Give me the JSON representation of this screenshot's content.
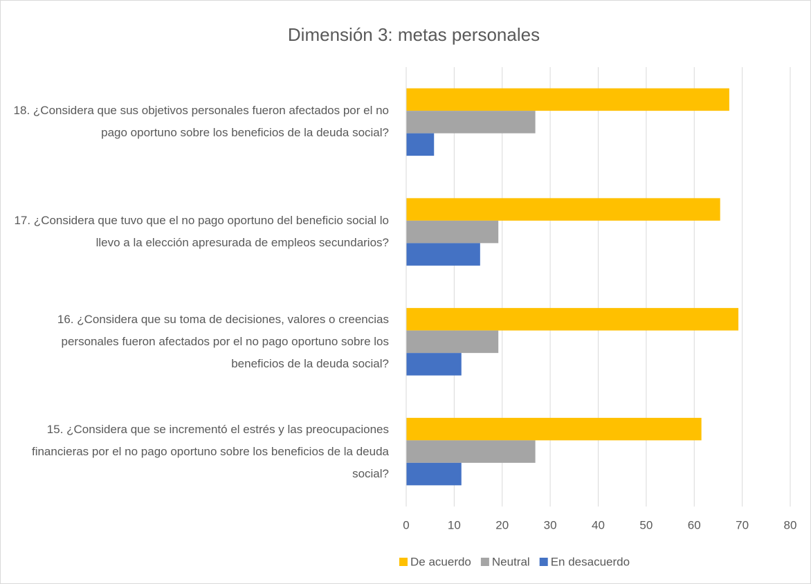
{
  "chart_data": {
    "type": "hbar",
    "title": "Dimensión 3: metas personales",
    "categories": [
      "18. ¿Considera que sus objetivos personales fueron afectados por el no pago oportuno sobre los beneficios de la deuda social?",
      "17. ¿Considera que tuvo que el no pago oportuno del beneficio social lo llevo a la elección apresurada de empleos secundarios?",
      "16. ¿Considera que su toma de decisiones, valores o creencias personales fueron afectados por el no pago oportuno sobre los beneficios de la deuda social?",
      "15. ¿Considera que se incrementó el estrés y las preocupaciones financieras por el no pago oportuno sobre los beneficios de la deuda social?"
    ],
    "series": [
      {
        "name": "De acuerdo",
        "color": "#ffc000",
        "values": [
          67.3,
          65.4,
          69.2,
          61.5
        ]
      },
      {
        "name": "Neutral",
        "color": "#a5a5a5",
        "values": [
          26.9,
          19.2,
          19.2,
          26.9
        ]
      },
      {
        "name": "En desacuerdo",
        "color": "#4472c4",
        "values": [
          5.8,
          15.4,
          11.5,
          11.5
        ]
      }
    ],
    "xlim": [
      0,
      80
    ],
    "xticks": [
      0,
      10,
      20,
      30,
      40,
      50,
      60,
      70,
      80
    ],
    "grid": true
  }
}
